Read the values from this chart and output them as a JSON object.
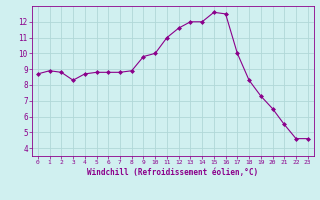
{
  "x": [
    0,
    1,
    2,
    3,
    4,
    5,
    6,
    7,
    8,
    9,
    10,
    11,
    12,
    13,
    14,
    15,
    16,
    17,
    18,
    19,
    20,
    21,
    22,
    23
  ],
  "y": [
    8.7,
    8.9,
    8.8,
    8.3,
    8.7,
    8.8,
    8.8,
    8.8,
    8.9,
    9.8,
    10.0,
    11.0,
    11.6,
    12.0,
    12.0,
    12.6,
    12.5,
    10.0,
    8.3,
    7.3,
    6.5,
    5.5,
    4.6,
    4.6
  ],
  "line_color": "#8b008b",
  "marker": "D",
  "marker_size": 2,
  "bg_color": "#d0f0f0",
  "grid_color": "#b0d8d8",
  "xlabel": "Windchill (Refroidissement éolien,°C)",
  "xlim": [
    -0.5,
    23.5
  ],
  "ylim": [
    3.5,
    13.0
  ],
  "yticks": [
    4,
    5,
    6,
    7,
    8,
    9,
    10,
    11,
    12
  ],
  "xticks": [
    0,
    1,
    2,
    3,
    4,
    5,
    6,
    7,
    8,
    9,
    10,
    11,
    12,
    13,
    14,
    15,
    16,
    17,
    18,
    19,
    20,
    21,
    22,
    23
  ],
  "label_color": "#8b008b",
  "tick_color": "#8b008b"
}
